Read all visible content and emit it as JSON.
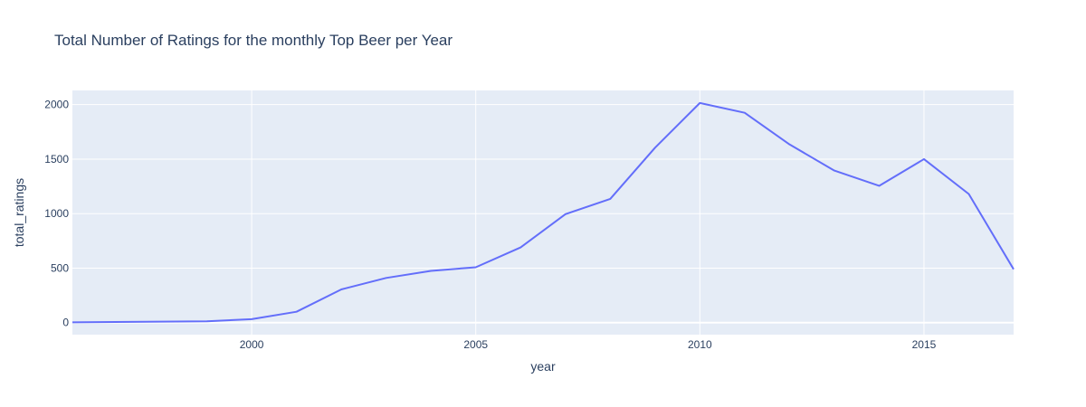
{
  "chart_data": {
    "type": "line",
    "title": "Total Number of Ratings for the monthly Top Beer per Year",
    "xlabel": "year",
    "ylabel": "total_ratings",
    "xlim": [
      1996,
      2017
    ],
    "ylim": [
      -110,
      2130
    ],
    "x_ticks": [
      2000,
      2005,
      2010,
      2015
    ],
    "y_ticks": [
      0,
      500,
      1000,
      1500,
      2000
    ],
    "grid": true,
    "line_color": "#636efa",
    "plot_bg": "#e5ecf6",
    "x": [
      1996,
      1999,
      2000,
      2001,
      2002,
      2003,
      2004,
      2005,
      2006,
      2007,
      2008,
      2009,
      2010,
      2011,
      2012,
      2013,
      2014,
      2015,
      2016,
      2017
    ],
    "y": [
      3,
      12,
      32,
      100,
      305,
      410,
      475,
      508,
      690,
      995,
      1135,
      1605,
      2015,
      1925,
      1635,
      1395,
      1255,
      1500,
      1180,
      490
    ]
  }
}
